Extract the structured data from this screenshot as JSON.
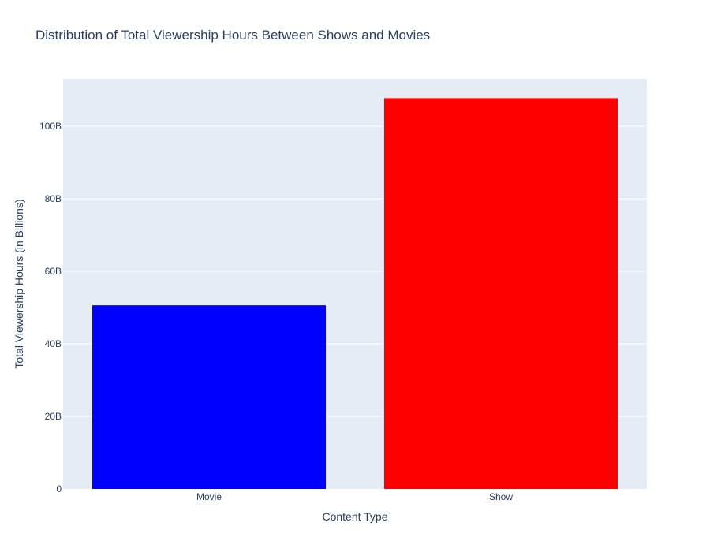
{
  "chart_data": {
    "type": "bar",
    "title": "Distribution of Total Viewership Hours Between Shows and Movies",
    "xlabel": "Content Type",
    "ylabel": "Total Viewership Hours (in Billions)",
    "categories": [
      "Movie",
      "Show"
    ],
    "values": [
      50600000000,
      107700000000
    ],
    "colors": [
      "#0000ff",
      "#ff0000"
    ],
    "ylim": [
      0,
      113000000000
    ],
    "yticks": [
      0,
      20000000000,
      40000000000,
      60000000000,
      80000000000,
      100000000000
    ],
    "ytick_labels": [
      "0",
      "20B",
      "40B",
      "60B",
      "80B",
      "100B"
    ],
    "grid": true,
    "plot_background": "#e5ecf6"
  }
}
